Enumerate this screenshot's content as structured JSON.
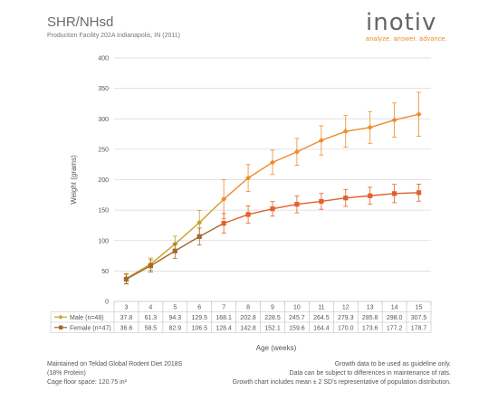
{
  "header": {
    "title": "SHR/NHsd",
    "subtitle": "Production Facility 202A Indianapolis, IN (2011)"
  },
  "logo": {
    "brand_text": "inotiv",
    "tagline": "analyze. answer. advance."
  },
  "chart_data": {
    "type": "line",
    "xlabel": "Age (weeks)",
    "ylabel": "Weight (grams)",
    "ylim": [
      0,
      400
    ],
    "yticks": [
      0,
      50,
      100,
      150,
      200,
      250,
      300,
      350,
      400
    ],
    "grid": true,
    "categories": [
      "3",
      "4",
      "5",
      "6",
      "7",
      "8",
      "9",
      "10",
      "11",
      "12",
      "13",
      "14",
      "15"
    ],
    "series": [
      {
        "name": "Male (n=48)",
        "color": "#ef8b2c",
        "color_early": "#c9a227",
        "marker": "diamond",
        "values": [
          37.8,
          61.3,
          94.3,
          129.5,
          168.1,
          202.8,
          228.5,
          245.7,
          264.5,
          279.3,
          285.8,
          298.0,
          307.5
        ],
        "labels": [
          "37.8",
          "61.3",
          "94.3",
          "129.5",
          "168.1",
          "202.8",
          "228.5",
          "245.7",
          "264.5",
          "279.3",
          "285.8",
          "298.0",
          "307.5"
        ],
        "err": [
          8,
          10,
          13,
          20,
          32,
          22,
          20,
          22,
          24,
          26,
          26,
          28,
          36
        ]
      },
      {
        "name": "Female (n=47)",
        "color": "#e2602a",
        "color_early": "#a4692b",
        "marker": "square",
        "values": [
          36.6,
          58.5,
          82.9,
          106.5,
          128.4,
          142.8,
          152.1,
          159.6,
          164.4,
          170.0,
          173.6,
          177.2,
          178.7
        ],
        "labels": [
          "36.6",
          "58.5",
          "82.9",
          "106.5",
          "128.4",
          "142.8",
          "152.1",
          "159.6",
          "164.4",
          "170.0",
          "173.6",
          "177.2",
          "178.7"
        ],
        "err": [
          8,
          10,
          12,
          14,
          16,
          14,
          12,
          14,
          13,
          14,
          14,
          15,
          14
        ]
      }
    ]
  },
  "footer": {
    "left": [
      "Maintained on Teklad Global Rodent Diet 2018S",
      "(18% Protein)",
      "Cage floor space: 120.75 in²"
    ],
    "right": [
      "Growth data to be used as guideline only.",
      "Data can be subject to differences in maintenance of rats.",
      "Growth chart includes mean ± 2 SD's representative of population distribution."
    ]
  }
}
